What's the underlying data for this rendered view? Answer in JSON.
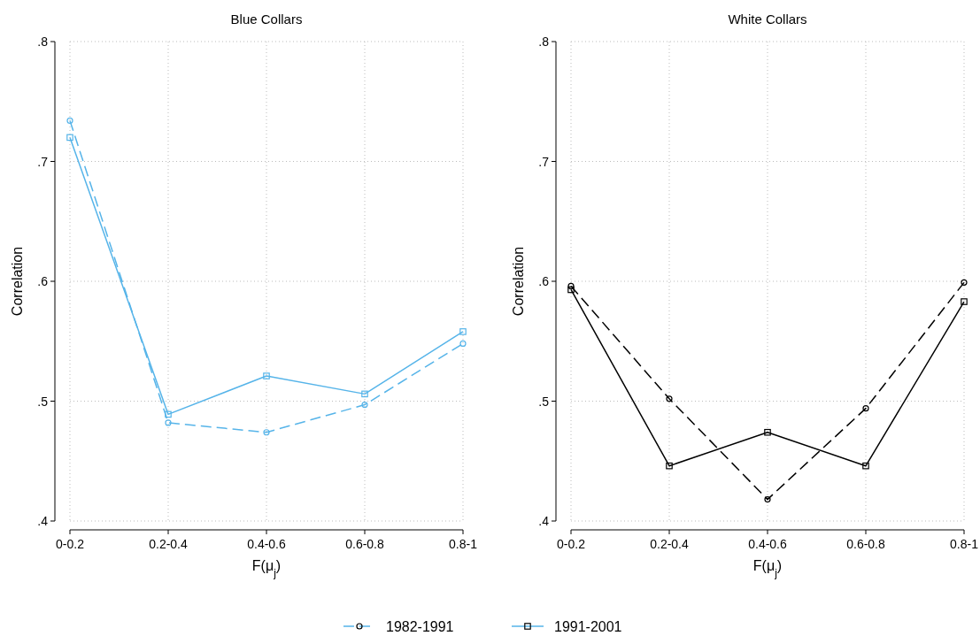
{
  "chart_data": [
    {
      "type": "line",
      "title": "Blue Collars",
      "xlabel": "F(μ$_{j}$)",
      "ylabel": "Correlation",
      "categories": [
        "0-0.2",
        "0.2-0.4",
        "0.4-0.6",
        "0.6-0.8",
        "0.8-1"
      ],
      "ylim": [
        0.4,
        0.8
      ],
      "yticks": [
        {
          "value": 0.4,
          "label": ".4"
        },
        {
          "value": 0.5,
          "label": ".5"
        },
        {
          "value": 0.6,
          "label": ".6"
        },
        {
          "value": 0.7,
          "label": ".7"
        },
        {
          "value": 0.8,
          "label": ".8"
        }
      ],
      "grid": true,
      "legend": "bottom",
      "series": [
        {
          "name": "1982-1991",
          "color": "#56b4e9",
          "marker": "circle",
          "line_style": "dashed",
          "values": [
            0.734,
            0.482,
            0.474,
            0.497,
            0.548
          ]
        },
        {
          "name": "1991-2001",
          "color": "#56b4e9",
          "marker": "square",
          "line_style": "solid",
          "values": [
            0.72,
            0.489,
            0.521,
            0.506,
            0.558
          ]
        }
      ]
    },
    {
      "type": "line",
      "title": "White Collars",
      "xlabel": "F(μ$_{j}$)",
      "ylabel": "Correlation",
      "categories": [
        "0-0.2",
        "0.2-0.4",
        "0.4-0.6",
        "0.6-0.8",
        "0.8-1"
      ],
      "ylim": [
        0.4,
        0.8
      ],
      "yticks": [
        {
          "value": 0.4,
          "label": ".4"
        },
        {
          "value": 0.5,
          "label": ".5"
        },
        {
          "value": 0.6,
          "label": ".6"
        },
        {
          "value": 0.7,
          "label": ".7"
        },
        {
          "value": 0.8,
          "label": ".8"
        }
      ],
      "grid": true,
      "series": [
        {
          "color": "#000000",
          "marker": "circle",
          "line_style": "dashed",
          "values": [
            0.596,
            0.502,
            0.418,
            0.494,
            0.599
          ]
        },
        {
          "color": "#000000",
          "marker": "square",
          "line_style": "solid",
          "values": [
            0.593,
            0.446,
            0.474,
            0.446,
            0.583
          ]
        }
      ]
    }
  ]
}
